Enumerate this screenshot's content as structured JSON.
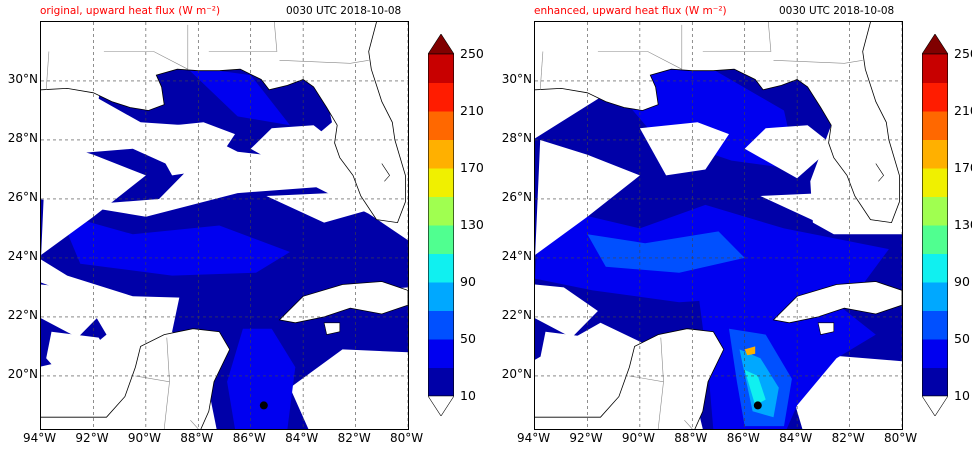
{
  "panels": [
    {
      "title": "original, upward heat flux (W m⁻²)",
      "time": "0030 UTC 2018-10-08",
      "variant": "original"
    },
    {
      "title": "enhanced, upward heat flux (W m⁻²)",
      "time": "0030 UTC 2018-10-08",
      "variant": "enhanced"
    }
  ],
  "lat_labels": [
    "30°N",
    "28°N",
    "26°N",
    "24°N",
    "22°N",
    "20°N"
  ],
  "lon_labels": [
    "94°W",
    "92°W",
    "90°W",
    "88°W",
    "86°W",
    "84°W",
    "82°W",
    "80°W"
  ],
  "colorbar": {
    "labels": [
      "250",
      "210",
      "170",
      "130",
      "90",
      "50",
      "10"
    ],
    "colors": [
      "#0000a8",
      "#0000f0",
      "#0050ff",
      "#00a8ff",
      "#10f0f0",
      "#50ff90",
      "#a0ff50",
      "#f0f000",
      "#ffb000",
      "#ff6800",
      "#ff1c00",
      "#c80000"
    ],
    "over_color": "#800000",
    "under_color": "#ffffff"
  },
  "map": {
    "lon_range": [
      -94,
      -80
    ],
    "lat_range": [
      18.2,
      32
    ],
    "land_color": "#ffffff",
    "hurricane_center": {
      "lon": -85.5,
      "lat": 19.0
    }
  }
}
